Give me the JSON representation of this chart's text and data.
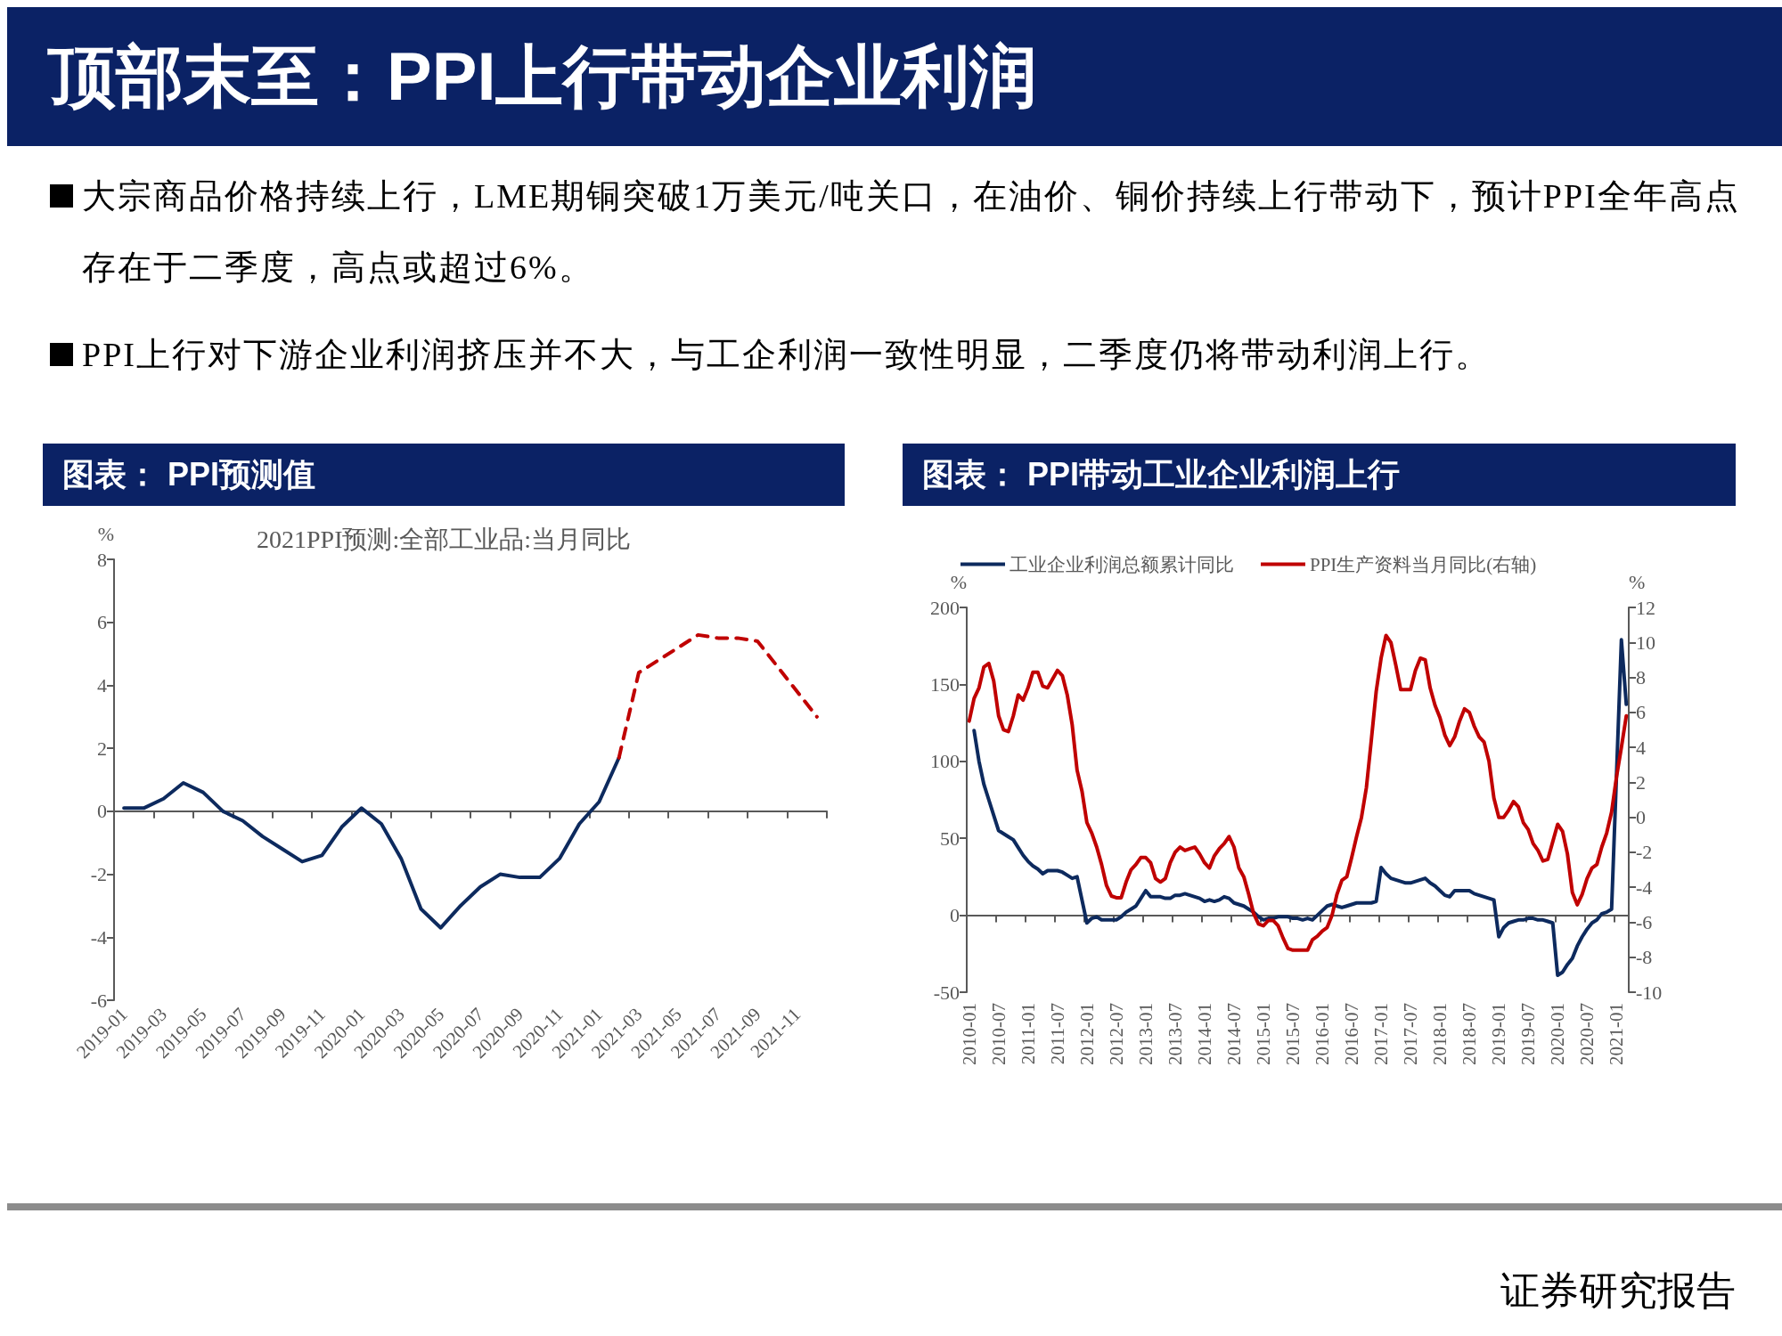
{
  "chart_data": [
    {
      "type": "other",
      "title": "顶部末至：PPI上行带动企业利润",
      "annotations": [
        "大宗商品价格持续上行，LME期铜突破1万美元/吨关口，在油价、铜价持续上行带动下，预计PPI全年高点存在于二季度，高点或超过6%。",
        "PPI上行对下游企业利润挤压并不大，与工企利润一致性明显，二季度仍将带动利润上行。",
        "证券研究报告"
      ]
    },
    {
      "type": "line",
      "title": "图表： PPI预测值",
      "subtitle": "2021PPI预测:全部工业品:当月同比",
      "ylabel": "%",
      "categories": [
        "2019-01",
        null,
        "2019-03",
        null,
        "2019-05",
        null,
        "2019-07",
        null,
        "2019-09",
        null,
        "2019-11",
        null,
        "2020-01",
        null,
        "2020-03",
        null,
        "2020-05",
        null,
        "2020-07",
        null,
        "2020-09",
        null,
        "2020-11",
        null,
        "2021-01",
        null,
        "2021-03",
        null,
        "2021-05",
        null,
        "2021-07",
        null,
        "2021-09",
        null,
        "2021-11",
        null
      ],
      "series": [
        {
          "color": "#0d2a5e",
          "values": [
            0.1,
            0.1,
            0.4,
            0.9,
            0.6,
            0.0,
            -0.3,
            -0.8,
            -1.2,
            -1.6,
            -1.4,
            -0.5,
            0.1,
            -0.4,
            -1.5,
            -3.1,
            -3.7,
            -3.0,
            -2.4,
            -2.0,
            -2.1,
            -2.1,
            -1.5,
            -0.4,
            0.3,
            1.7,
            null,
            null,
            null,
            null,
            null,
            null,
            null,
            null,
            null,
            null
          ]
        },
        {
          "color": "#c00000",
          "line_style": "dashed",
          "values": [
            null,
            null,
            null,
            null,
            null,
            null,
            null,
            null,
            null,
            null,
            null,
            null,
            null,
            null,
            null,
            null,
            null,
            null,
            null,
            null,
            null,
            null,
            null,
            null,
            null,
            1.7,
            4.4,
            4.8,
            5.2,
            5.6,
            5.5,
            5.5,
            5.4,
            4.6,
            3.8,
            3.0
          ]
        }
      ],
      "ylim": [
        -6,
        8
      ],
      "yticks": [
        -6,
        -4,
        -2,
        0,
        2,
        4,
        6,
        8
      ]
    },
    {
      "type": "line",
      "title": "图表： PPI带动工业企业利润上行",
      "ylabel": "%",
      "y2label": "%",
      "legend": "top",
      "categories": [
        "2010-01",
        null,
        null,
        null,
        null,
        null,
        "2010-07",
        null,
        null,
        null,
        null,
        null,
        "2011-01",
        null,
        null,
        null,
        null,
        null,
        "2011-07",
        null,
        null,
        null,
        null,
        null,
        "2012-01",
        null,
        null,
        null,
        null,
        null,
        "2012-07",
        null,
        null,
        null,
        null,
        null,
        "2013-01",
        null,
        null,
        null,
        null,
        null,
        "2013-07",
        null,
        null,
        null,
        null,
        null,
        "2014-01",
        null,
        null,
        null,
        null,
        null,
        "2014-07",
        null,
        null,
        null,
        null,
        null,
        "2015-01",
        null,
        null,
        null,
        null,
        null,
        "2015-07",
        null,
        null,
        null,
        null,
        null,
        "2016-01",
        null,
        null,
        null,
        null,
        null,
        "2016-07",
        null,
        null,
        null,
        null,
        null,
        "2017-01",
        null,
        null,
        null,
        null,
        null,
        "2017-07",
        null,
        null,
        null,
        null,
        null,
        "2018-01",
        null,
        null,
        null,
        null,
        null,
        "2018-07",
        null,
        null,
        null,
        null,
        null,
        "2019-01",
        null,
        null,
        null,
        null,
        null,
        "2019-07",
        null,
        null,
        null,
        null,
        null,
        "2020-01",
        null,
        null,
        null,
        null,
        null,
        "2020-07",
        null,
        null,
        null,
        null,
        null,
        "2021-01",
        null,
        null
      ],
      "series": [
        {
          "name": "工业企业利润总额累计同比",
          "color": "#0d2a5e",
          "values": [
            null,
            120,
            100,
            85,
            75,
            65,
            55,
            53,
            51,
            49,
            44,
            39,
            35,
            32,
            30,
            27,
            29,
            29,
            29,
            28,
            26,
            24,
            25,
            10,
            -5,
            -2,
            -1,
            -3,
            -3,
            -3,
            -3,
            -1,
            2,
            4,
            6,
            11,
            16,
            12,
            12,
            12,
            11,
            11,
            13,
            13,
            14,
            13,
            12,
            11,
            9,
            10,
            9,
            10,
            12,
            11,
            8,
            7,
            6,
            4,
            2,
            -1,
            -3,
            -2,
            -2,
            -1,
            -1,
            -1,
            -2,
            -2,
            -3,
            -2,
            -3,
            0,
            3,
            6,
            7,
            6,
            5,
            6,
            7,
            8,
            8,
            8,
            8,
            9,
            31,
            27,
            24,
            23,
            22,
            21,
            21,
            22,
            23,
            24,
            21,
            19,
            16,
            13,
            12,
            16,
            16,
            16,
            16,
            14,
            13,
            12,
            11,
            10,
            -14,
            -8,
            -5,
            -4,
            -3,
            -3,
            -2,
            -2,
            -3,
            -3,
            -4,
            -5,
            -39,
            -37,
            -32,
            -28,
            -20,
            -14,
            -9,
            -5,
            -3,
            1,
            2,
            4,
            91,
            179,
            137
          ]
        },
        {
          "name": "PPI生产资料当月同比(右轴)",
          "color": "#c00000",
          "axis": "y2",
          "values": [
            5.5,
            6.8,
            7.4,
            8.6,
            8.8,
            7.8,
            5.8,
            5.0,
            4.9,
            5.8,
            7.0,
            6.7,
            7.4,
            8.3,
            8.3,
            7.5,
            7.4,
            7.9,
            8.4,
            8.1,
            7.0,
            5.3,
            2.7,
            1.5,
            -0.3,
            -0.9,
            -1.7,
            -2.7,
            -3.9,
            -4.5,
            -4.6,
            -4.6,
            -3.7,
            -3.0,
            -2.7,
            -2.3,
            -2.3,
            -2.6,
            -3.5,
            -3.7,
            -3.5,
            -2.6,
            -2.0,
            -1.7,
            -1.9,
            -1.8,
            -1.7,
            -2.1,
            -2.6,
            -2.9,
            -2.2,
            -1.8,
            -1.5,
            -1.1,
            -1.7,
            -2.9,
            -3.4,
            -4.4,
            -5.5,
            -6.1,
            -6.2,
            -5.9,
            -5.9,
            -6.2,
            -6.9,
            -7.5,
            -7.6,
            -7.6,
            -7.6,
            -7.6,
            -7.0,
            -6.8,
            -6.5,
            -6.3,
            -5.6,
            -4.4,
            -3.6,
            -3.4,
            -2.3,
            -1.1,
            0.0,
            1.7,
            4.4,
            7.2,
            9.1,
            10.4,
            10.0,
            8.7,
            7.3,
            7.3,
            7.3,
            8.4,
            9.1,
            9.0,
            7.4,
            6.4,
            5.7,
            4.7,
            4.1,
            4.6,
            5.5,
            6.2,
            6.0,
            5.2,
            4.6,
            4.3,
            3.2,
            1.1,
            0.0,
            0.0,
            0.4,
            0.9,
            0.6,
            -0.3,
            -0.7,
            -1.5,
            -1.9,
            -2.5,
            -2.4,
            -1.4,
            -0.4,
            -0.8,
            -2.1,
            -4.3,
            -5.0,
            -4.4,
            -3.5,
            -2.9,
            -2.7,
            -1.7,
            -0.9,
            0.3,
            2.3,
            4.0,
            5.8
          ]
        }
      ],
      "ylim": [
        -50,
        200
      ],
      "yticks": [
        -50,
        0,
        50,
        100,
        150,
        200
      ],
      "y2lim": [
        -10,
        12
      ],
      "y2ticks": [
        -10,
        -8,
        -6,
        -4,
        -2,
        0,
        2,
        4,
        6,
        8,
        10,
        12
      ]
    }
  ]
}
